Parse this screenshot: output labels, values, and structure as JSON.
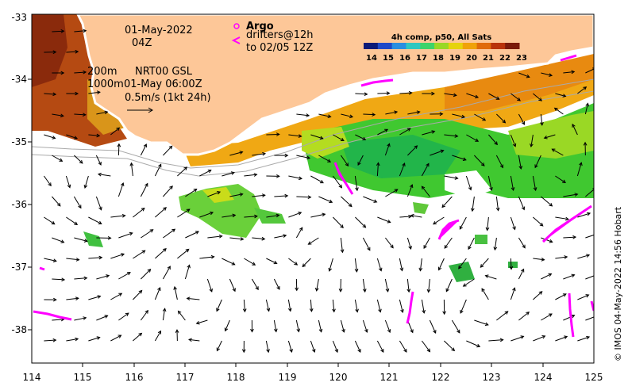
{
  "map": {
    "date": "01-May-2022",
    "hour": "04Z",
    "depth_200": "200m",
    "depth_1000": "1000m",
    "current_source": "NRT00 GSL",
    "current_time": "01-May 06:00Z",
    "scale_label": "0.5m/s (1kt 24h)",
    "argo_label": "Argo",
    "drifters_line1": "drifters@12h",
    "drifters_line2": "to 02/05 12Z",
    "copyright": "© IMOS 04-May-2022 14:56 Hobart"
  },
  "colorbar": {
    "title": "4h comp, p50, All Sats",
    "ticks": [
      "14",
      "15",
      "16",
      "17",
      "18",
      "19",
      "20",
      "21",
      "22",
      "23"
    ],
    "colors": [
      "#0b1a78",
      "#1f49c8",
      "#2a8ee0",
      "#2fc7c0",
      "#3dd36a",
      "#9ad825",
      "#e6d30d",
      "#f0a20a",
      "#e06a0a",
      "#b8320a",
      "#7a1a0a"
    ]
  },
  "axes": {
    "x_ticks": [
      "114",
      "115",
      "116",
      "117",
      "118",
      "119",
      "120",
      "121",
      "122",
      "123",
      "124",
      "125"
    ],
    "y_ticks": [
      "-33",
      "-34",
      "-35",
      "-36",
      "-37",
      "-38"
    ],
    "lon_range": [
      114,
      125
    ],
    "lat_range": [
      -38.5,
      -32.8
    ]
  },
  "colors": {
    "land": "#fdc798",
    "argo": "#ff00ff"
  }
}
